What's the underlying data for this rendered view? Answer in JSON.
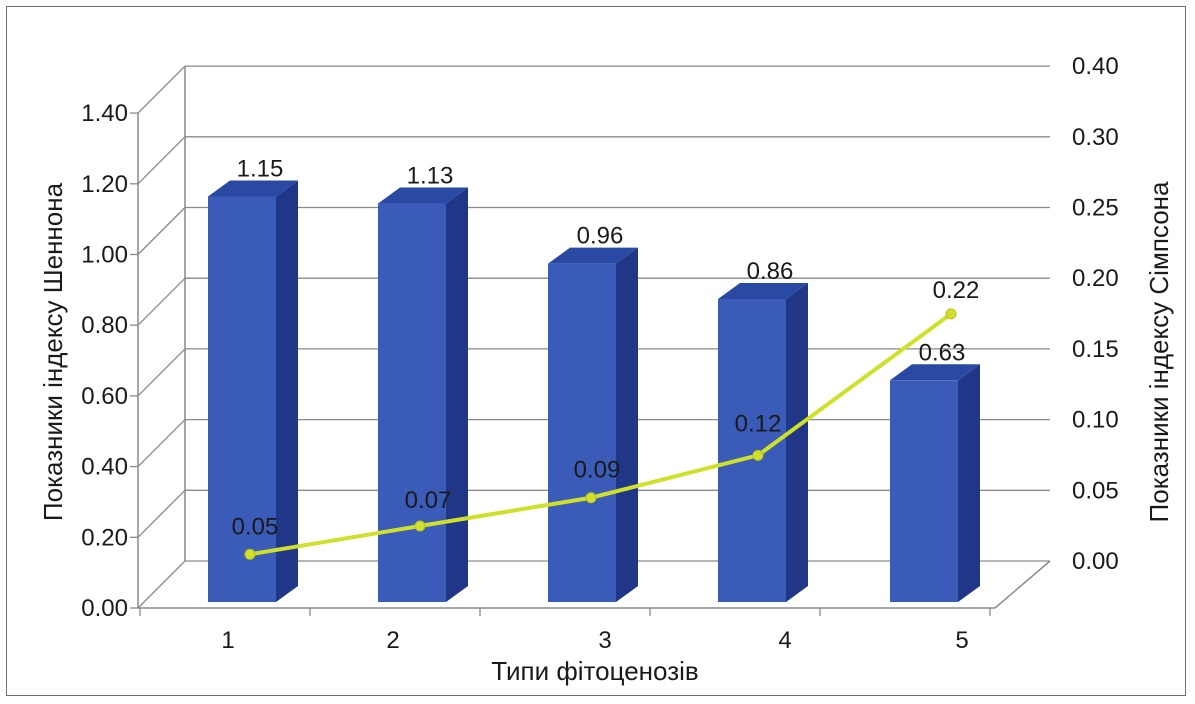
{
  "chart_data": {
    "type": "bar",
    "categories": [
      "1",
      "2",
      "3",
      "4",
      "5"
    ],
    "xlabel": "Типи фітоценозів",
    "series": [
      {
        "name": "",
        "type": "bar",
        "axis": "left",
        "values": [
          1.15,
          1.13,
          0.96,
          0.86,
          0.63
        ],
        "labels": [
          "1.15",
          "1.13",
          "0.96",
          "0.86",
          "0.63"
        ],
        "color": "#3a5bb8"
      },
      {
        "name": "",
        "type": "line",
        "axis": "right",
        "values": [
          0.05,
          0.07,
          0.09,
          0.12,
          0.22
        ],
        "labels": [
          "0.05",
          "0.07",
          "0.09",
          "0.12",
          "0.22"
        ],
        "color": "#cfe02a"
      }
    ],
    "y_left": {
      "label": "Показники індексу Шеннона",
      "ylim": [
        0,
        1.4
      ],
      "ticks": [
        "0.00",
        "0.20",
        "0.40",
        "0.60",
        "0.80",
        "1.00",
        "1.20",
        "1.40"
      ]
    },
    "y_right": {
      "label": "Показники індексу Сімпсона",
      "ylim": [
        0,
        0.4
      ],
      "ticks": [
        "0.00",
        "0.05",
        "0.10",
        "0.15",
        "0.20",
        "0.25",
        "0.30",
        "0.40"
      ]
    },
    "grid": true,
    "legend": "none"
  }
}
